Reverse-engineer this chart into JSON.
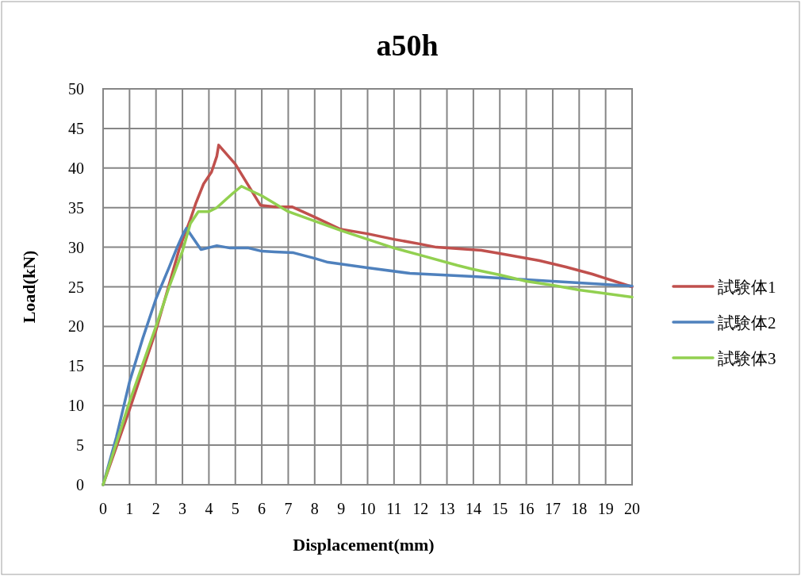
{
  "chart_data": {
    "type": "line",
    "title": "a50h",
    "xlabel": "Displacement(mm)",
    "ylabel": "Load(kN)",
    "xlim": [
      0,
      20
    ],
    "xticks": [
      0,
      1,
      2,
      3,
      4,
      5,
      6,
      7,
      8,
      9,
      10,
      11,
      12,
      13,
      14,
      15,
      16,
      17,
      18,
      19,
      20
    ],
    "ylim": [
      0,
      50
    ],
    "yticks": [
      0,
      5,
      10,
      15,
      20,
      25,
      30,
      35,
      40,
      45,
      50
    ],
    "grid": true,
    "legend": "right",
    "marker": "none",
    "line_style": "solid",
    "series": [
      {
        "name": "試験体1",
        "color": "#c0504d",
        "x": [
          0,
          1,
          2,
          2.9,
          3.3,
          3.5,
          3.8,
          4.1,
          4.3,
          4.37,
          5,
          5.95,
          6.5,
          7.14,
          8,
          8.95,
          10,
          11,
          12,
          12.6,
          14.3,
          15,
          16.5,
          17.5,
          18.5,
          20
        ],
        "values": [
          0,
          9.5,
          19.5,
          30,
          33.5,
          35.5,
          38,
          39.5,
          41.5,
          42.9,
          40.5,
          35.3,
          35.1,
          35.1,
          33.8,
          32.3,
          31.7,
          31,
          30.4,
          30,
          29.6,
          29.2,
          28.3,
          27.5,
          26.6,
          25
        ]
      },
      {
        "name": "試験体2",
        "color": "#4f81bd",
        "x": [
          0,
          0.5,
          1,
          1.5,
          2,
          2.5,
          2.8,
          3,
          3.15,
          3.7,
          4.3,
          4.8,
          5.5,
          6,
          6.5,
          7.2,
          8,
          8.5,
          10,
          11.6,
          14,
          16,
          18,
          20
        ],
        "values": [
          0,
          6,
          13,
          18.5,
          23.5,
          27.5,
          30,
          31.5,
          32.4,
          29.7,
          30.2,
          29.9,
          29.9,
          29.5,
          29.4,
          29.3,
          28.6,
          28.1,
          27.4,
          26.7,
          26.3,
          25.9,
          25.5,
          25.1
        ]
      },
      {
        "name": "試験体3",
        "color": "#92d050",
        "x": [
          0,
          1,
          2,
          2.5,
          3,
          3.3,
          3.6,
          4,
          4.3,
          4.9,
          5.23,
          6,
          7,
          8,
          9,
          10,
          11,
          12,
          13.4,
          14,
          15,
          16,
          17,
          18,
          20
        ],
        "values": [
          0,
          10.5,
          20,
          25,
          29.5,
          33,
          34.5,
          34.5,
          35,
          36.8,
          37.7,
          36.5,
          34.5,
          33.3,
          32.1,
          31,
          29.9,
          29,
          27.7,
          27.2,
          26.5,
          25.7,
          25.2,
          24.6,
          23.7
        ]
      }
    ]
  }
}
